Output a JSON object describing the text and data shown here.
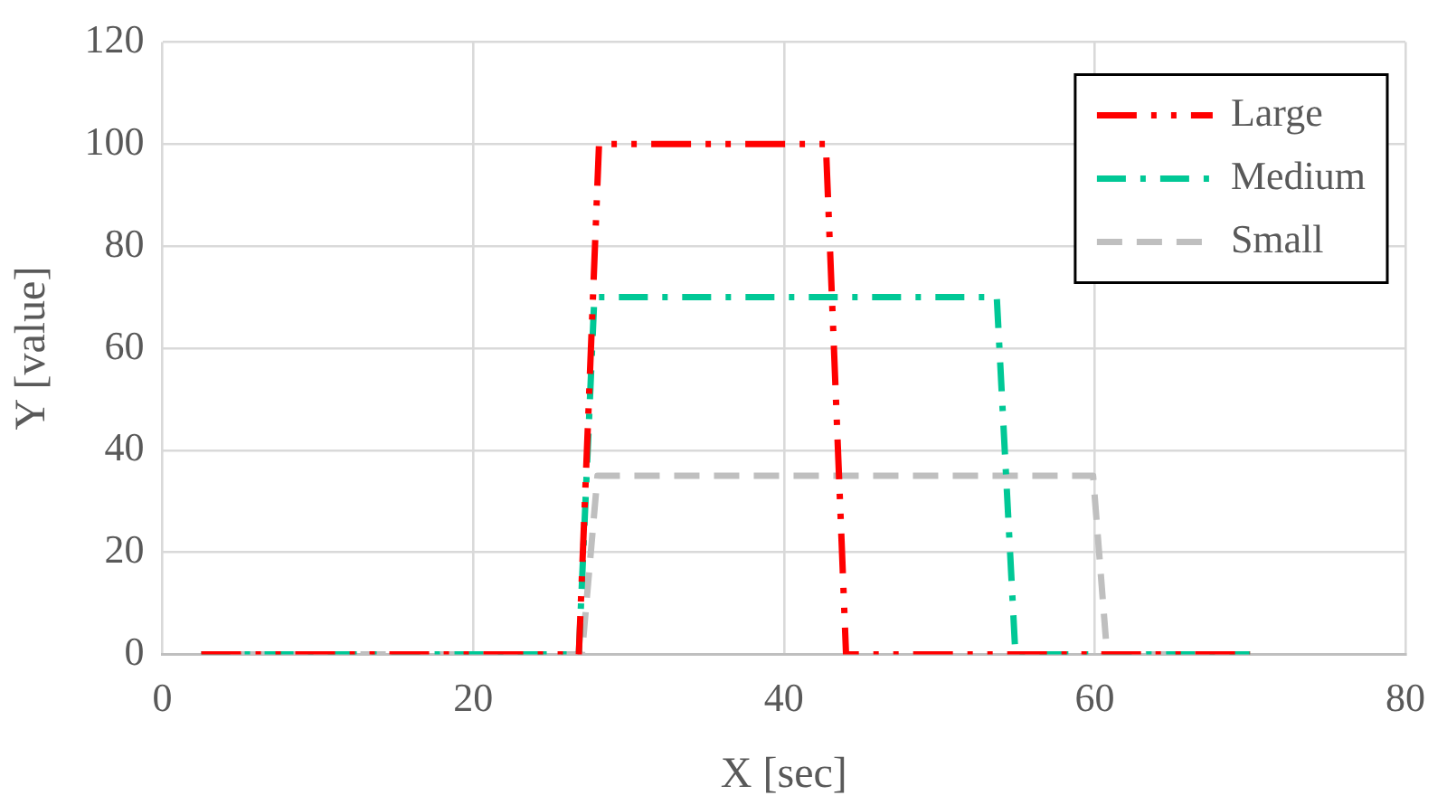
{
  "chart_data": {
    "type": "line",
    "xlabel": "X [sec]",
    "ylabel": "Y [value]",
    "xlim": [
      0,
      80
    ],
    "xticks": [
      0,
      20,
      40,
      60,
      80
    ],
    "ylim": [
      0,
      120
    ],
    "yticks": [
      0,
      20,
      40,
      60,
      80,
      100,
      120
    ],
    "grid": true,
    "legend": "top right",
    "marker": "none",
    "series": [
      {
        "name": "Large",
        "color": "#ff0000",
        "line_style": "dash-dot-dot",
        "x": [
          2.5,
          26.8,
          28.1,
          42.7,
          44.0,
          70
        ],
        "values": [
          0,
          0,
          100,
          100,
          0,
          0
        ]
      },
      {
        "name": "Medium",
        "color": "#00c896",
        "line_style": "dash-dot",
        "x": [
          2.5,
          26.8,
          27.8,
          53.7,
          54.9,
          70
        ],
        "values": [
          0,
          0,
          70,
          70,
          0,
          0
        ]
      },
      {
        "name": "Small",
        "color": "#bfbfbf",
        "line_style": "dashed",
        "x": [
          2.5,
          27.0,
          28.0,
          59.9,
          60.8,
          70
        ],
        "values": [
          0,
          0,
          35,
          35,
          0,
          0
        ]
      }
    ]
  }
}
